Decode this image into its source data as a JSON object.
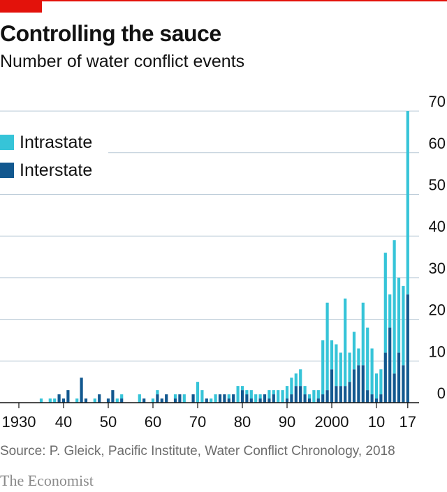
{
  "header": {
    "title": "Controlling the sauce",
    "subtitle": "Number of water conflict events"
  },
  "legend": {
    "intrastate_label": "Intrastate",
    "interstate_label": "Interstate"
  },
  "footer": {
    "source": "Source: P. Gleick, Pacific Institute, Water Conflict Chronology, 2018",
    "brand": "The Economist"
  },
  "colors": {
    "brand_red": "#e3120b",
    "intrastate": "#36c4d8",
    "interstate": "#12588f",
    "grid": "#b9c9d6",
    "axis": "#121212"
  },
  "chart_data": {
    "type": "bar",
    "stacked": true,
    "title": "Controlling the sauce",
    "subtitle": "Number of water conflict events",
    "ylim": [
      0,
      70
    ],
    "yticks": [
      0,
      10,
      20,
      30,
      40,
      50,
      60,
      70
    ],
    "y_axis_side": "right",
    "xlim": [
      1930,
      2018
    ],
    "xticks": [
      {
        "value": 1930,
        "label": "1930"
      },
      {
        "value": 1940,
        "label": "40"
      },
      {
        "value": 1950,
        "label": "50"
      },
      {
        "value": 1960,
        "label": "60"
      },
      {
        "value": 1970,
        "label": "70"
      },
      {
        "value": 1980,
        "label": "80"
      },
      {
        "value": 1990,
        "label": "90"
      },
      {
        "value": 2000,
        "label": "2000"
      },
      {
        "value": 2010,
        "label": "10"
      },
      {
        "value": 2017,
        "label": "17"
      }
    ],
    "legend_position": "top-left",
    "grid": true,
    "series": [
      {
        "name": "Interstate",
        "color": "#12588f"
      },
      {
        "name": "Intrastate",
        "color": "#36c4d8"
      }
    ],
    "x": [
      1935,
      1937,
      1938,
      1939,
      1940,
      1941,
      1943,
      1944,
      1945,
      1947,
      1948,
      1950,
      1951,
      1952,
      1953,
      1957,
      1958,
      1960,
      1961,
      1962,
      1963,
      1965,
      1966,
      1967,
      1969,
      1970,
      1971,
      1972,
      1973,
      1974,
      1975,
      1976,
      1977,
      1978,
      1979,
      1980,
      1981,
      1982,
      1983,
      1984,
      1985,
      1986,
      1987,
      1988,
      1989,
      1990,
      1991,
      1992,
      1993,
      1994,
      1995,
      1996,
      1997,
      1998,
      1999,
      2000,
      2001,
      2002,
      2003,
      2004,
      2005,
      2006,
      2007,
      2008,
      2009,
      2010,
      2011,
      2012,
      2013,
      2014,
      2015,
      2016,
      2017
    ],
    "interstate": [
      0,
      0,
      0,
      2,
      1,
      3,
      0,
      6,
      1,
      0,
      2,
      1,
      3,
      0,
      1,
      0,
      1,
      0,
      2,
      1,
      2,
      1,
      2,
      0,
      2,
      0,
      0,
      1,
      0,
      0,
      2,
      2,
      1,
      2,
      0,
      3,
      2,
      1,
      0,
      1,
      2,
      1,
      2,
      0,
      0,
      1,
      2,
      4,
      4,
      2,
      1,
      0,
      1,
      2,
      3,
      8,
      4,
      4,
      4,
      5,
      8,
      9,
      9,
      3,
      2,
      1,
      2,
      12,
      18,
      7,
      12,
      9,
      26
    ],
    "intrastate": [
      1,
      1,
      1,
      0,
      0,
      0,
      1,
      0,
      0,
      1,
      0,
      0,
      0,
      1,
      1,
      2,
      0,
      1,
      1,
      0,
      0,
      1,
      0,
      2,
      0,
      5,
      3,
      0,
      1,
      2,
      0,
      0,
      1,
      0,
      4,
      1,
      1,
      2,
      2,
      1,
      0,
      2,
      1,
      3,
      3,
      3,
      4,
      3,
      4,
      2,
      1,
      3,
      2,
      13,
      21,
      7,
      10,
      8,
      21,
      7,
      9,
      4,
      15,
      15,
      11,
      6,
      6,
      24,
      8,
      32,
      18,
      19,
      44
    ]
  }
}
